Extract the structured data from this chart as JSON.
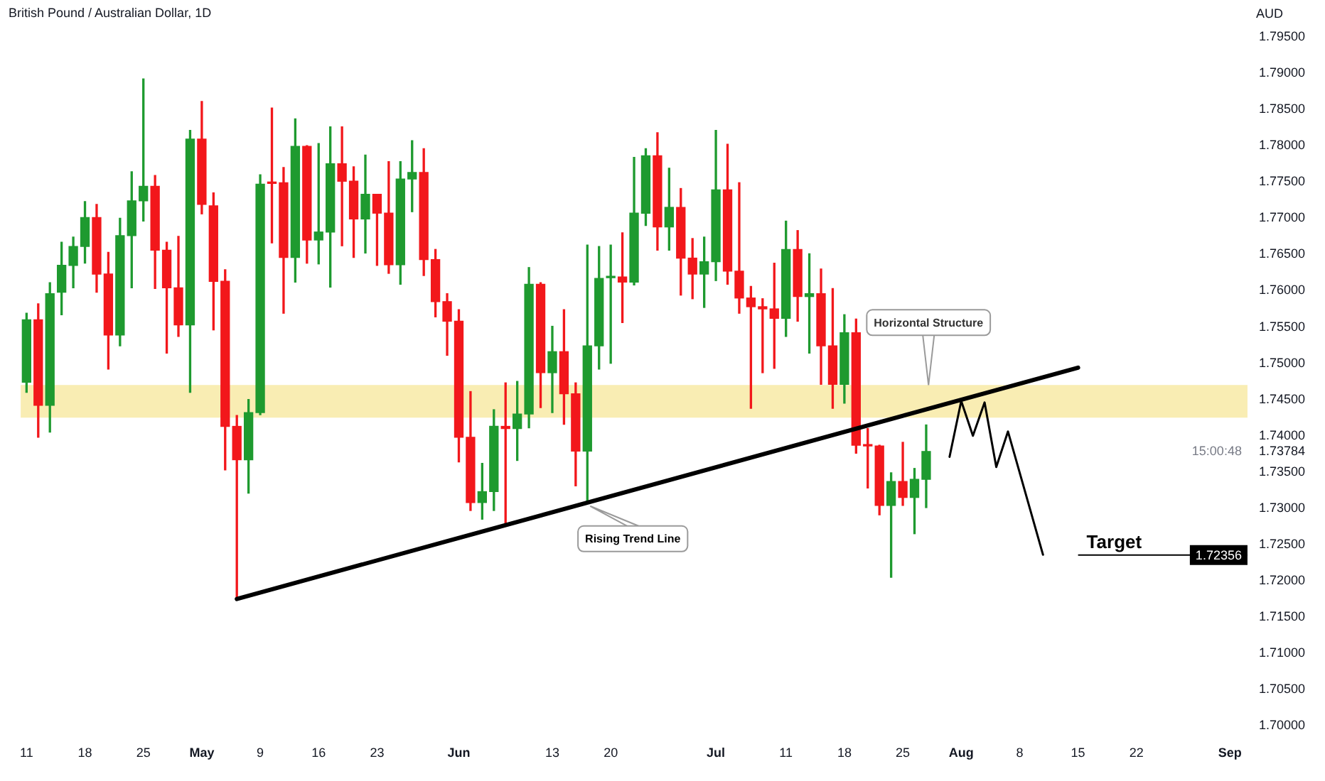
{
  "chart_data": {
    "type": "candlestick",
    "title": "British Pound / Australian Dollar, 1D",
    "ylabel": "AUD",
    "categories": [
      "11",
      null,
      null,
      null,
      null,
      "18",
      null,
      null,
      null,
      null,
      "25",
      null,
      null,
      null,
      null,
      "May",
      null,
      null,
      null,
      null,
      "9",
      null,
      null,
      null,
      null,
      "16",
      null,
      null,
      null,
      null,
      "23",
      null,
      null,
      null,
      null,
      null,
      null,
      "Jun",
      null,
      null,
      null,
      null,
      null,
      null,
      null,
      "13",
      null,
      null,
      null,
      null,
      "20",
      null,
      null,
      null,
      null,
      null,
      null,
      null,
      null,
      "Jul",
      null,
      null,
      null,
      null,
      null,
      "11",
      null,
      null,
      null,
      null,
      "18",
      null,
      null,
      null,
      null,
      "25",
      null,
      null,
      null,
      null,
      "Aug",
      null,
      null,
      null,
      null,
      "8",
      null,
      null,
      null,
      null,
      "15",
      null,
      null,
      null,
      null,
      "22",
      null,
      null,
      null,
      null,
      null,
      null,
      null,
      "Sep",
      null
    ],
    "ohlc": [
      [
        1.7474,
        1.7569,
        1.746,
        1.756
      ],
      [
        1.756,
        1.7582,
        1.7398,
        1.7442
      ],
      [
        1.7442,
        1.7611,
        1.7405,
        1.7596
      ],
      [
        1.7598,
        1.7667,
        1.7567,
        1.7635
      ],
      [
        1.7635,
        1.7674,
        1.7604,
        1.7661
      ],
      [
        1.7661,
        1.7723,
        1.7638,
        1.7701
      ],
      [
        1.7701,
        1.7719,
        1.7598,
        1.7623
      ],
      [
        1.7623,
        1.7653,
        1.7492,
        1.7539
      ],
      [
        1.7539,
        1.77,
        1.7524,
        1.7676
      ],
      [
        1.7676,
        1.7764,
        1.7604,
        1.7724
      ],
      [
        1.7724,
        1.7892,
        1.7696,
        1.7744
      ],
      [
        1.7744,
        1.7759,
        1.7603,
        1.7656
      ],
      [
        1.7656,
        1.7667,
        1.7514,
        1.7604
      ],
      [
        1.7604,
        1.7675,
        1.7537,
        1.7553
      ],
      [
        1.7553,
        1.7821,
        1.746,
        1.7809
      ],
      [
        1.7809,
        1.7861,
        1.7706,
        1.7719
      ],
      [
        1.7717,
        1.7735,
        1.7546,
        1.7613
      ],
      [
        1.7613,
        1.7629,
        1.7353,
        1.7413
      ],
      [
        1.7413,
        1.7428,
        1.7175,
        1.7367
      ],
      [
        1.7367,
        1.745,
        1.7321,
        1.7432
      ],
      [
        1.7432,
        1.776,
        1.7429,
        1.7747
      ],
      [
        1.7749,
        1.7852,
        1.7666,
        1.7748
      ],
      [
        1.7749,
        1.777,
        1.7569,
        1.7646
      ],
      [
        1.7646,
        1.7837,
        1.7612,
        1.7799
      ],
      [
        1.7799,
        1.78,
        1.7638,
        1.767
      ],
      [
        1.767,
        1.7803,
        1.7637,
        1.7681
      ],
      [
        1.7681,
        1.7826,
        1.7605,
        1.7775
      ],
      [
        1.7775,
        1.7826,
        1.7662,
        1.7751
      ],
      [
        1.7751,
        1.7771,
        1.7646,
        1.7699
      ],
      [
        1.7699,
        1.7787,
        1.7652,
        1.7733
      ],
      [
        1.7733,
        1.7733,
        1.7635,
        1.7707
      ],
      [
        1.7707,
        1.7778,
        1.7624,
        1.7636
      ],
      [
        1.7636,
        1.7778,
        1.7609,
        1.7754
      ],
      [
        1.7754,
        1.7807,
        1.7709,
        1.7763
      ],
      [
        1.7763,
        1.7796,
        1.7621,
        1.7643
      ],
      [
        1.7643,
        1.7657,
        1.7564,
        1.7585
      ],
      [
        1.7585,
        1.7596,
        1.7511,
        1.7558
      ],
      [
        1.7558,
        1.7574,
        1.7364,
        1.7398
      ],
      [
        1.7398,
        1.7461,
        1.7297,
        1.7308
      ],
      [
        1.7308,
        1.7362,
        1.7285,
        1.7323
      ],
      [
        1.7323,
        1.7436,
        1.7297,
        1.7413
      ],
      [
        1.7413,
        1.7473,
        1.7278,
        1.741
      ],
      [
        1.741,
        1.7475,
        1.7366,
        1.743
      ],
      [
        1.743,
        1.7632,
        1.7411,
        1.7609
      ],
      [
        1.7609,
        1.7611,
        1.7439,
        1.7487
      ],
      [
        1.7487,
        1.7551,
        1.7432,
        1.7516
      ],
      [
        1.7516,
        1.7574,
        1.7416,
        1.7458
      ],
      [
        1.7458,
        1.7473,
        1.7331,
        1.7379
      ],
      [
        1.7379,
        1.7663,
        1.731,
        1.7524
      ],
      [
        1.7524,
        1.7661,
        1.7492,
        1.7617
      ],
      [
        1.7618,
        1.7663,
        1.75,
        1.7619
      ],
      [
        1.7619,
        1.768,
        1.7556,
        1.7612
      ],
      [
        1.7612,
        1.7784,
        1.7608,
        1.7707
      ],
      [
        1.7707,
        1.7796,
        1.769,
        1.7786
      ],
      [
        1.7786,
        1.7818,
        1.7656,
        1.7688
      ],
      [
        1.7688,
        1.7769,
        1.7656,
        1.7715
      ],
      [
        1.7715,
        1.7741,
        1.7594,
        1.7645
      ],
      [
        1.7645,
        1.7672,
        1.7589,
        1.7623
      ],
      [
        1.7623,
        1.7674,
        1.7577,
        1.764
      ],
      [
        1.764,
        1.7821,
        1.7614,
        1.7739
      ],
      [
        1.7739,
        1.7802,
        1.7609,
        1.7627
      ],
      [
        1.7627,
        1.7749,
        1.7569,
        1.759
      ],
      [
        1.759,
        1.7606,
        1.7438,
        1.7578
      ],
      [
        1.7578,
        1.7589,
        1.7487,
        1.7575
      ],
      [
        1.7575,
        1.7638,
        1.7493,
        1.7562
      ],
      [
        1.7562,
        1.7696,
        1.7537,
        1.7657
      ],
      [
        1.7657,
        1.7683,
        1.7558,
        1.7592
      ],
      [
        1.7592,
        1.7651,
        1.7514,
        1.7596
      ],
      [
        1.7596,
        1.763,
        1.7471,
        1.7524
      ],
      [
        1.7524,
        1.7603,
        1.7438,
        1.7471
      ],
      [
        1.7471,
        1.7567,
        1.7445,
        1.7542
      ],
      [
        1.7542,
        1.7561,
        1.7376,
        1.7387
      ],
      [
        1.7387,
        1.741,
        1.7328,
        1.7386
      ],
      [
        1.7386,
        1.7387,
        1.7291,
        1.7304
      ],
      [
        1.7304,
        1.7349,
        1.7205,
        1.7337
      ],
      [
        1.7337,
        1.7391,
        1.7304,
        1.7315
      ],
      [
        1.7315,
        1.7355,
        1.7265,
        1.734
      ],
      [
        1.734,
        1.7415,
        1.7301,
        1.73784
      ],
      null,
      null,
      null,
      null,
      null,
      null,
      null,
      null,
      null,
      null,
      null,
      null,
      null,
      null,
      null,
      null,
      null,
      null,
      null,
      null,
      null,
      null,
      null,
      null,
      null,
      null,
      null
    ],
    "colors": [
      "#1e9a2f",
      "#f2171b",
      "#1e9a2f",
      "#1e9a2f",
      "#1e9a2f",
      "#1e9a2f",
      "#f2171b",
      "#f2171b",
      "#1e9a2f",
      "#1e9a2f",
      "#1e9a2f",
      "#f2171b",
      "#f2171b",
      "#f2171b",
      "#1e9a2f",
      "#f2171b",
      "#f2171b",
      "#f2171b",
      "#f2171b",
      "#1e9a2f",
      "#1e9a2f",
      "#f2171b",
      "#f2171b",
      "#1e9a2f",
      "#f2171b",
      "#1e9a2f",
      "#1e9a2f",
      "#f2171b",
      "#f2171b",
      "#1e9a2f",
      "#f2171b",
      "#f2171b",
      "#1e9a2f",
      "#1e9a2f",
      "#f2171b",
      "#f2171b",
      "#f2171b",
      "#f2171b",
      "#f2171b",
      "#1e9a2f",
      "#1e9a2f",
      "#f2171b",
      "#1e9a2f",
      "#1e9a2f",
      "#f2171b",
      "#1e9a2f",
      "#f2171b",
      "#f2171b",
      "#1e9a2f",
      "#1e9a2f",
      "#1e9a2f",
      "#f2171b",
      "#1e9a2f",
      "#1e9a2f",
      "#f2171b",
      "#1e9a2f",
      "#f2171b",
      "#f2171b",
      "#1e9a2f",
      "#1e9a2f",
      "#f2171b",
      "#f2171b",
      "#f2171b",
      "#f2171b",
      "#f2171b",
      "#1e9a2f",
      "#f2171b",
      "#1e9a2f",
      "#f2171b",
      "#f2171b",
      "#1e9a2f",
      "#f2171b",
      "#f2171b",
      "#f2171b",
      "#1e9a2f",
      "#f2171b",
      "#1e9a2f",
      "#1e9a2f",
      null,
      null,
      null,
      null,
      null,
      null,
      null,
      null,
      null,
      null,
      null,
      null,
      null,
      null,
      null,
      null,
      null,
      null,
      null,
      null,
      null,
      null,
      null,
      null,
      null,
      null,
      null
    ],
    "series": [
      {
        "type": "line",
        "name": "Rising Trend Line",
        "color": "#000000",
        "values": [
          null,
          null,
          null,
          null,
          null,
          null,
          null,
          null,
          null,
          null,
          null,
          null,
          null,
          null,
          null,
          null,
          null,
          null,
          1.7175,
          null,
          null,
          null,
          null,
          null,
          null,
          null,
          null,
          null,
          null,
          null,
          null,
          null,
          null,
          null,
          null,
          null,
          null,
          null,
          null,
          null,
          null,
          null,
          null,
          null,
          null,
          null,
          null,
          null,
          null,
          null,
          null,
          null,
          null,
          null,
          null,
          null,
          null,
          null,
          null,
          null,
          null,
          null,
          null,
          null,
          null,
          null,
          null,
          null,
          null,
          null,
          null,
          null,
          null,
          null,
          null,
          null,
          null,
          null,
          null,
          null,
          null,
          null,
          null,
          null,
          null,
          null,
          null,
          null,
          null,
          null,
          1.7494,
          null,
          null,
          null,
          null,
          null,
          null,
          null,
          null,
          null,
          null,
          null,
          null,
          null,
          null
        ]
      },
      {
        "type": "line",
        "color": "#000000",
        "values": [
          null,
          null,
          null,
          null,
          null,
          null,
          null,
          null,
          null,
          null,
          null,
          null,
          null,
          null,
          null,
          null,
          null,
          null,
          null,
          null,
          null,
          null,
          null,
          null,
          null,
          null,
          null,
          null,
          null,
          null,
          null,
          null,
          null,
          null,
          null,
          null,
          null,
          null,
          null,
          null,
          null,
          null,
          null,
          null,
          null,
          null,
          null,
          null,
          null,
          null,
          null,
          null,
          null,
          null,
          null,
          null,
          null,
          null,
          null,
          null,
          null,
          null,
          null,
          null,
          null,
          null,
          null,
          null,
          null,
          null,
          null,
          null,
          null,
          null,
          null,
          null,
          null,
          null,
          null,
          1.7371,
          1.7448,
          1.74,
          1.7446,
          1.7357,
          1.7406,
          null,
          null,
          1.7236,
          null,
          null,
          null,
          null,
          null,
          null,
          null,
          null,
          null,
          null,
          null,
          null,
          null,
          null,
          null,
          null,
          null
        ]
      }
    ],
    "bands": [
      {
        "axis": "y",
        "from": 1.7425,
        "to": 1.747,
        "label": "Horizontal Structure",
        "color": "#f7e79a"
      }
    ],
    "ref_lines": [
      {
        "axis": "y",
        "value": 1.72356,
        "label": "Target",
        "color": "#000000"
      }
    ],
    "annotations": [
      {
        "text": "1.72356",
        "y": 1.72356
      },
      "15:00:48"
    ],
    "ylim": [
      1.7,
      1.795
    ],
    "yticks": [
      {
        "value": 1.7,
        "label": "1.70000"
      },
      {
        "value": 1.705,
        "label": "1.70500"
      },
      {
        "value": 1.71,
        "label": "1.71000"
      },
      {
        "value": 1.715,
        "label": "1.71500"
      },
      {
        "value": 1.72,
        "label": "1.72000"
      },
      {
        "value": 1.725,
        "label": "1.72500"
      },
      {
        "value": 1.73,
        "label": "1.73000"
      },
      {
        "value": 1.735,
        "label": "1.73500"
      },
      {
        "value": 1.73784,
        "label": "1.73784"
      },
      {
        "value": 1.74,
        "label": "1.74000"
      },
      {
        "value": 1.745,
        "label": "1.74500"
      },
      {
        "value": 1.75,
        "label": "1.75000"
      },
      {
        "value": 1.755,
        "label": "1.75500"
      },
      {
        "value": 1.76,
        "label": "1.76000"
      },
      {
        "value": 1.765,
        "label": "1.76500"
      },
      {
        "value": 1.77,
        "label": "1.77000"
      },
      {
        "value": 1.775,
        "label": "1.77500"
      },
      {
        "value": 1.78,
        "label": "1.78000"
      },
      {
        "value": 1.785,
        "label": "1.78500"
      },
      {
        "value": 1.79,
        "label": "1.79000"
      },
      {
        "value": 1.795,
        "label": "1.79500"
      }
    ]
  }
}
